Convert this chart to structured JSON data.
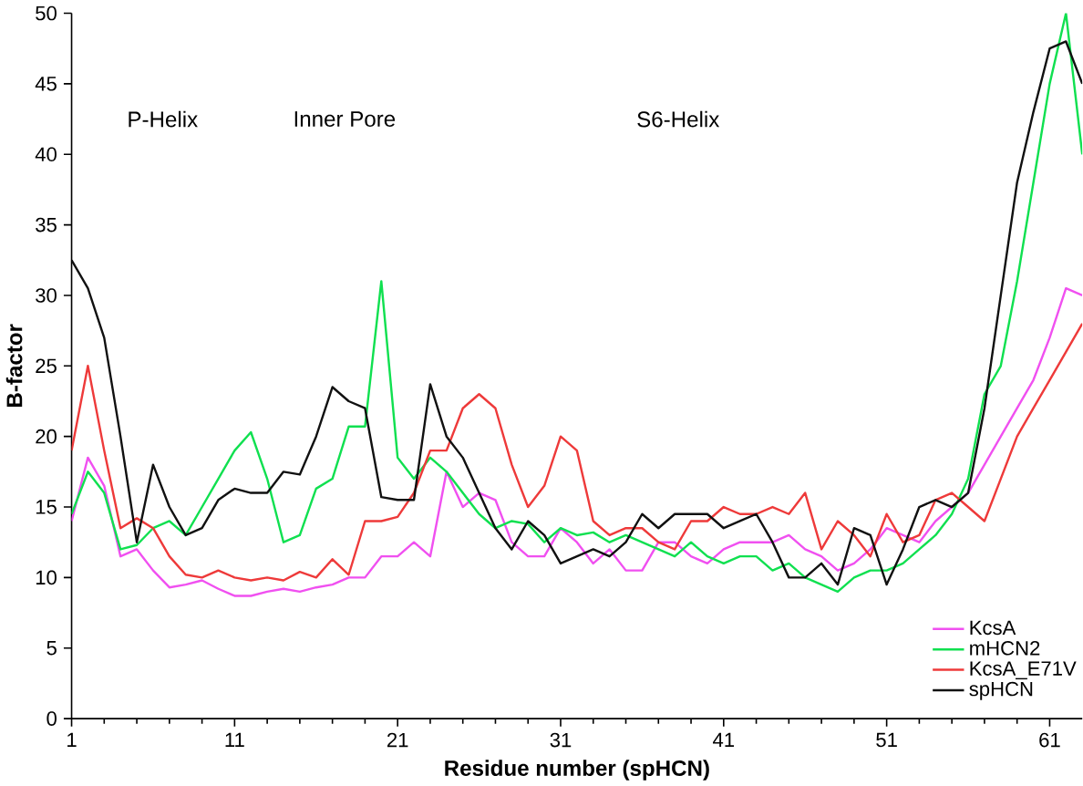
{
  "chart_data": {
    "type": "line",
    "xlabel": "Residue number (spHCN)",
    "ylabel": "B-factor",
    "annotations": [
      "P-Helix",
      "Inner Pore",
      "S6-Helix"
    ],
    "x": [
      1,
      2,
      3,
      4,
      5,
      6,
      7,
      8,
      9,
      10,
      11,
      12,
      13,
      14,
      15,
      16,
      17,
      18,
      19,
      20,
      21,
      22,
      23,
      24,
      25,
      26,
      27,
      28,
      29,
      30,
      31,
      32,
      33,
      34,
      35,
      36,
      37,
      38,
      39,
      40,
      41,
      42,
      43,
      44,
      45,
      46,
      47,
      48,
      49,
      50,
      51,
      52,
      53,
      54,
      55,
      56,
      57,
      58,
      59,
      60,
      61,
      62,
      63
    ],
    "xlim": [
      1,
      63
    ],
    "xticks": [
      1,
      11,
      21,
      31,
      41,
      51,
      61
    ],
    "ylim": [
      0,
      50
    ],
    "yticks": [
      0,
      5,
      10,
      15,
      20,
      25,
      30,
      35,
      40,
      45,
      50
    ],
    "grid": false,
    "legend": "bottom right",
    "marker": "none",
    "line_style": "solid",
    "series": [
      {
        "name": "KcsA",
        "color": "#f050f0",
        "values": [
          14,
          18.5,
          16.5,
          11.5,
          12,
          10.5,
          9.3,
          9.5,
          9.8,
          9.2,
          8.7,
          8.7,
          9,
          9.2,
          9,
          9.3,
          9.5,
          10,
          10,
          11.5,
          11.5,
          12.5,
          11.5,
          17.5,
          15,
          16,
          15.5,
          12.5,
          11.5,
          11.5,
          13.5,
          12.5,
          11,
          12,
          10.5,
          10.5,
          12.5,
          12.5,
          11.5,
          11,
          12,
          12.5,
          12.5,
          12.5,
          13,
          12,
          11.5,
          10.5,
          11,
          12,
          13.5,
          13,
          12.5,
          14,
          15,
          16,
          18,
          20,
          22,
          24,
          27,
          30.5,
          30
        ]
      },
      {
        "name": "mHCN2",
        "color": "#10e050",
        "values": [
          14.5,
          17.5,
          16,
          12,
          12.3,
          13.5,
          14,
          13,
          15,
          17,
          19,
          20.3,
          17,
          12.5,
          13,
          16.3,
          17,
          20.7,
          20.7,
          31,
          18.5,
          17,
          18.5,
          17.5,
          16,
          14.5,
          13.5,
          14,
          13.8,
          12.5,
          13.5,
          13,
          13.2,
          12.5,
          13,
          12.5,
          12,
          11.5,
          12.5,
          11.5,
          11,
          11.5,
          11.5,
          10.5,
          11,
          10,
          9.5,
          9,
          10,
          10.5,
          10.5,
          11,
          12,
          13,
          14.5,
          17,
          23,
          25,
          31,
          38,
          45,
          50,
          40
        ]
      },
      {
        "name": "KcsA_E71V",
        "color": "#ee3a3a",
        "values": [
          19,
          25,
          19,
          13.5,
          14.2,
          13.5,
          11.5,
          10.2,
          10,
          10.5,
          10,
          9.8,
          10,
          9.8,
          10.4,
          10,
          11.3,
          10.2,
          14,
          14,
          14.3,
          16,
          19,
          19,
          22,
          23,
          22,
          18,
          15,
          16.5,
          20,
          19,
          14,
          13,
          13.5,
          13.5,
          12.5,
          12,
          14,
          14,
          15,
          14.5,
          14.5,
          15,
          14.5,
          16,
          12,
          14,
          13,
          11.5,
          14.5,
          12.5,
          13,
          15.5,
          16,
          15,
          14,
          17,
          20,
          22,
          24,
          26,
          28
        ]
      },
      {
        "name": "spHCN",
        "color": "#111111",
        "values": [
          32.5,
          30.5,
          27,
          20,
          12.5,
          18,
          15,
          13,
          13.5,
          15.5,
          16.3,
          16,
          16,
          17.5,
          17.3,
          20,
          23.5,
          22.5,
          22,
          15.7,
          15.5,
          15.5,
          23.7,
          20,
          18.5,
          16,
          13.5,
          12,
          14,
          13,
          11,
          11.5,
          12,
          11.5,
          12.5,
          14.5,
          13.5,
          14.5,
          14.5,
          14.5,
          13.5,
          14,
          14.5,
          12.5,
          10,
          10,
          11,
          9.5,
          13.5,
          13,
          9.5,
          12,
          15,
          15.5,
          15,
          16,
          22,
          30,
          38,
          43,
          47.5,
          48,
          45
        ]
      }
    ]
  }
}
